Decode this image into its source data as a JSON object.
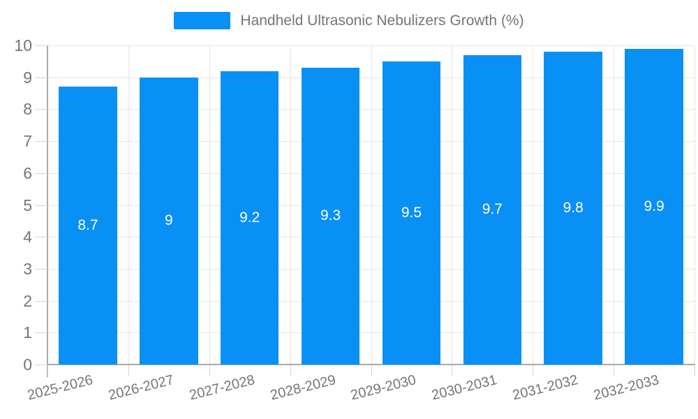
{
  "legend": {
    "label": "Handheld Ultrasonic Nebulizers Growth (%)"
  },
  "chart_data": {
    "type": "bar",
    "title": "Handheld Ultrasonic Nebulizers Growth (%)",
    "categories": [
      "2025-2026",
      "2026-2027",
      "2027-2028",
      "2028-2029",
      "2029-2030",
      "2030-2031",
      "2031-2032",
      "2032-2033"
    ],
    "values": [
      8.7,
      9,
      9.2,
      9.3,
      9.5,
      9.7,
      9.8,
      9.9
    ],
    "value_labels": [
      "8.7",
      "9",
      "9.2",
      "9.3",
      "9.5",
      "9.7",
      "9.8",
      "9.9"
    ],
    "xlabel": "",
    "ylabel": "",
    "ylim": [
      0,
      10
    ],
    "ytick_step": 1,
    "ytick_labels": [
      "0",
      "1",
      "2",
      "3",
      "4",
      "5",
      "6",
      "7",
      "8",
      "9",
      "10"
    ],
    "grid": true,
    "legend_position": "top",
    "x_label_rotation_deg": -14,
    "value_label_position": "inside-middle",
    "colors": {
      "bar": "#0990f5",
      "value_label": "#ffffff",
      "axis_text": "#757575",
      "grid_line": "#e6e6e6",
      "axis_line": "#a9a9a9",
      "tick_line": "#d4d4d4",
      "background": "#ffffff"
    }
  }
}
